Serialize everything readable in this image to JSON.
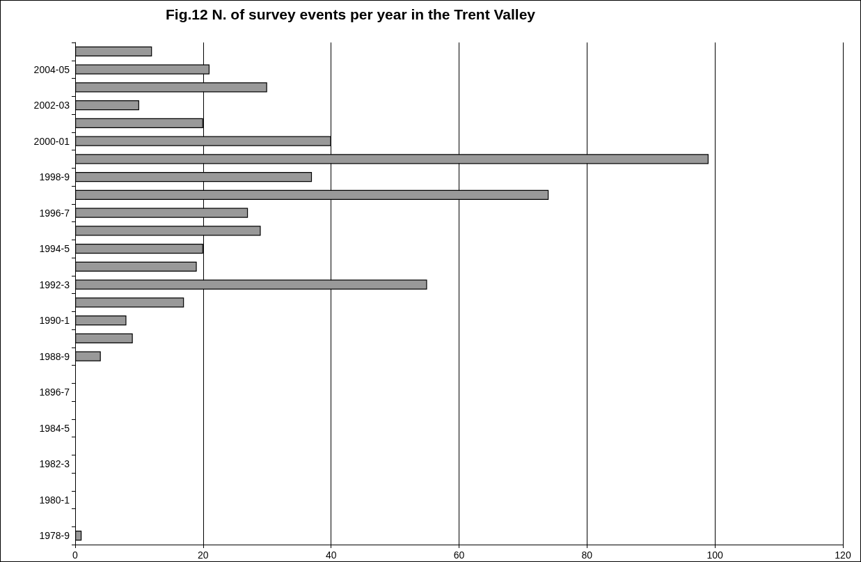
{
  "chart_data": {
    "type": "bar",
    "orientation": "horizontal",
    "title": "Fig.12 N. of survey events per year in the Trent Valley",
    "categories": [
      null,
      "2004-05",
      null,
      "2002-03",
      null,
      "2000-01",
      null,
      "1998-9",
      null,
      "1996-7",
      null,
      "1994-5",
      null,
      "1992-3",
      null,
      "1990-1",
      null,
      "1988-9",
      null,
      "1896-7",
      null,
      "1984-5",
      null,
      "1982-3",
      null,
      "1980-1",
      null,
      "1978-9"
    ],
    "values": [
      12,
      21,
      30,
      10,
      20,
      40,
      99,
      37,
      74,
      27,
      29,
      20,
      19,
      55,
      17,
      8,
      9,
      4,
      null,
      null,
      null,
      null,
      null,
      null,
      null,
      null,
      null,
      1
    ],
    "color": "#999999",
    "xlim": [
      0,
      120
    ],
    "xticks": [
      0,
      20,
      40,
      60,
      80,
      100,
      120
    ],
    "grid": "x"
  }
}
